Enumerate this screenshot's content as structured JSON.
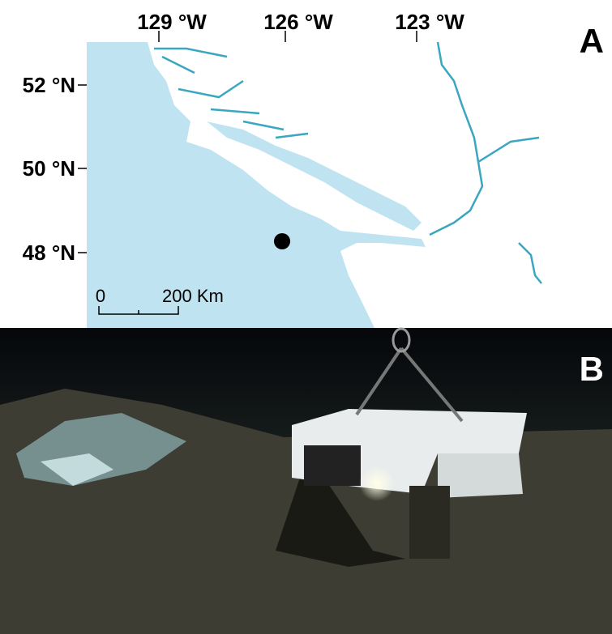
{
  "panels": [
    {
      "label": "A"
    },
    {
      "label": "B"
    }
  ],
  "map": {
    "lon_labels": [
      "129 °W",
      "126 °W",
      "123 °W"
    ],
    "lat_labels": [
      "52 °N",
      "50 °N",
      "48 °N"
    ],
    "scale_bar": {
      "start": "0",
      "end": "200 Km"
    }
  }
}
